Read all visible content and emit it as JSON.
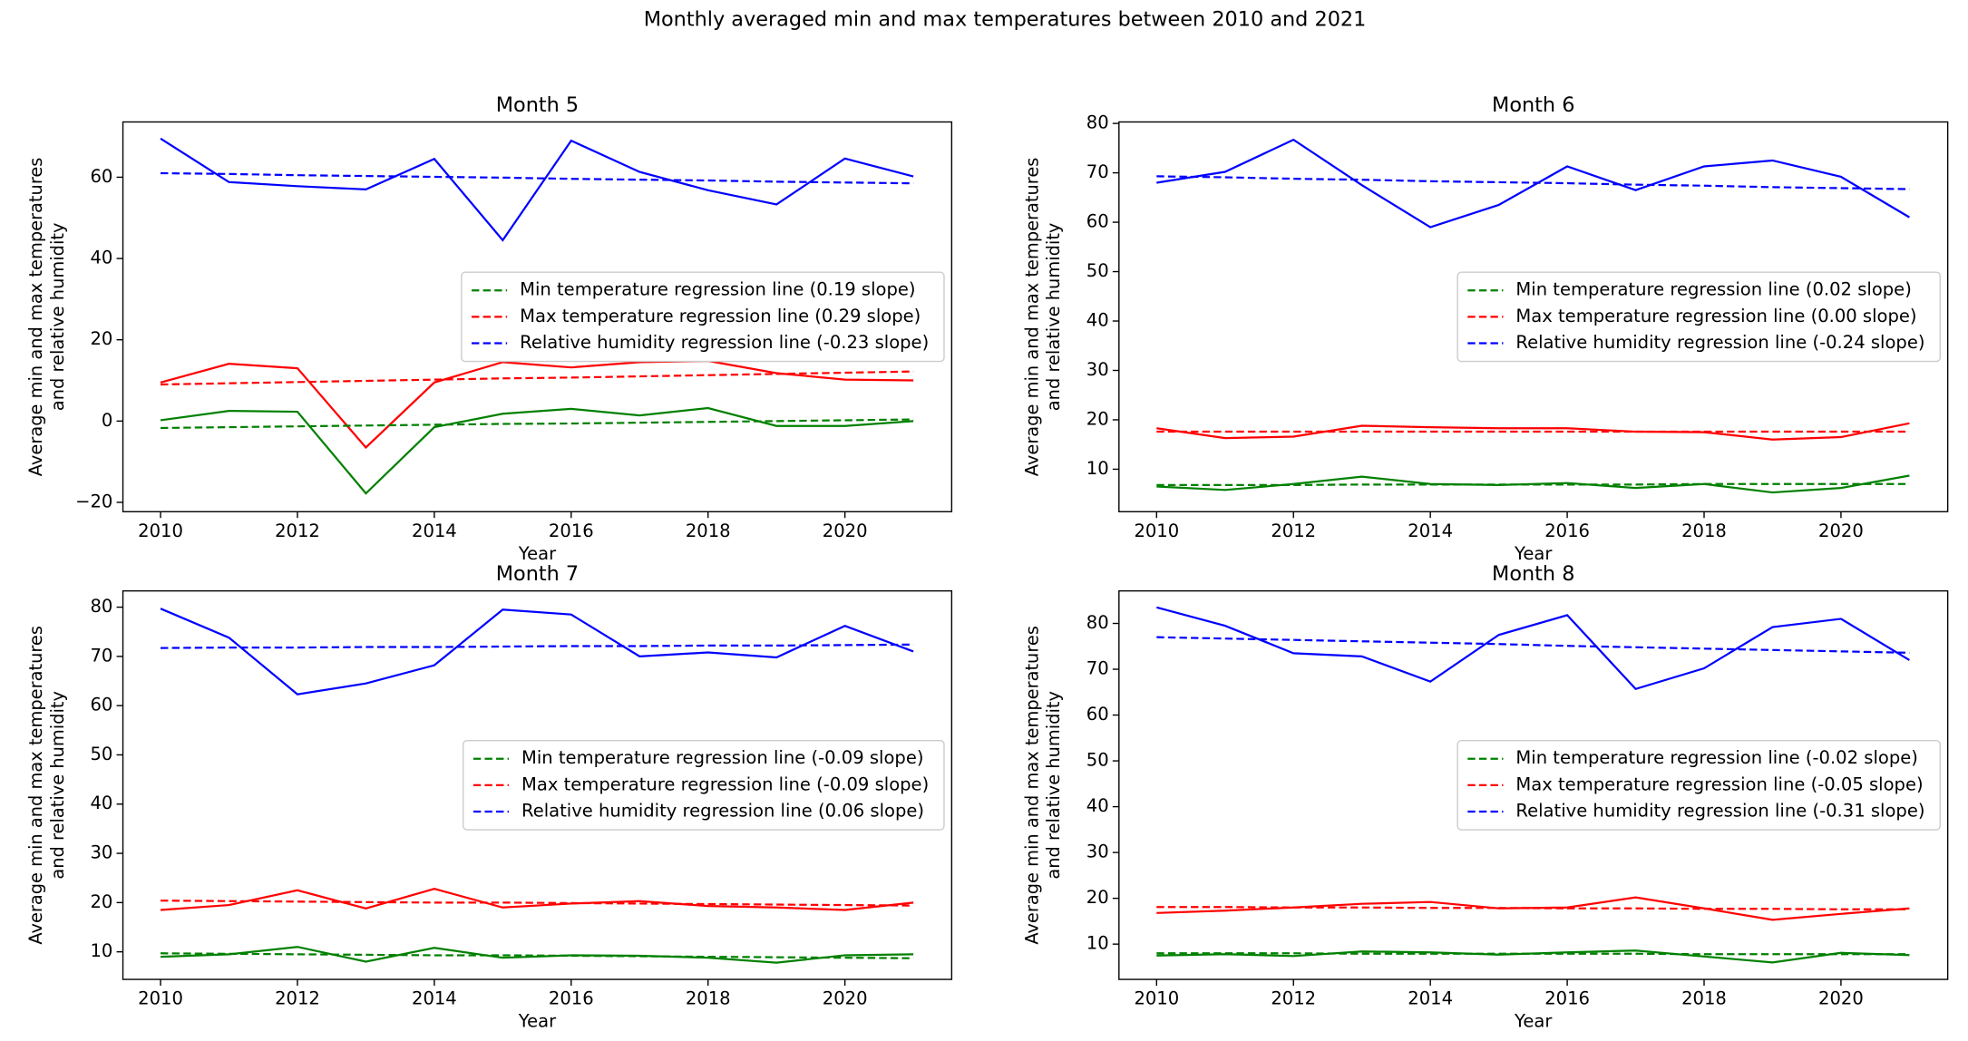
{
  "title": "Monthly averaged min and max temperatures between 2010 and 2021",
  "chart_data": [
    {
      "type": "line",
      "title": "Month 5",
      "xlabel": "Year",
      "ylabel": [
        "Average min and max temperatures",
        "and relative humidity"
      ],
      "x": [
        2010,
        2011,
        2012,
        2013,
        2014,
        2015,
        2016,
        2017,
        2018,
        2019,
        2020,
        2021
      ],
      "xlim": [
        2009.45,
        2021.56
      ],
      "xticks": [
        2010,
        2012,
        2014,
        2016,
        2018,
        2020
      ],
      "ylim": [
        -22.3,
        73.6
      ],
      "yticks": [
        {
          "value": -20,
          "label": "−20"
        },
        0,
        20,
        40,
        60
      ],
      "legend": "center right",
      "series": [
        {
          "color": "#008000",
          "linestyle": "solid",
          "values": [
            0.2,
            2.5,
            2.3,
            -17.8,
            -1.5,
            1.8,
            3.0,
            1.4,
            3.2,
            -1.2,
            -1.2,
            0
          ]
        },
        {
          "color": "#ff0000",
          "linestyle": "solid",
          "values": [
            9.5,
            14.1,
            13.0,
            -6.5,
            9.5,
            14.5,
            13.2,
            14.5,
            14.8,
            11.8,
            10.2,
            10.0
          ]
        },
        {
          "color": "#0000ff",
          "linestyle": "solid",
          "values": [
            69.5,
            58.8,
            57.8,
            57.0,
            64.5,
            44.5,
            69.0,
            61.3,
            56.8,
            53.3,
            64.6,
            60.2
          ]
        },
        {
          "name": "Min temperature regression line (0.19 slope)",
          "color": "#008000",
          "linestyle": "dashed",
          "values": [
            -1.7,
            -1.5,
            -1.3,
            -1.1,
            -0.9,
            -0.7,
            -0.6,
            -0.4,
            -0.2,
            0.0,
            0.2,
            0.4
          ]
        },
        {
          "name": "Max temperature regression line (0.29 slope)",
          "color": "#ff0000",
          "linestyle": "dashed",
          "values": [
            9.0,
            9.3,
            9.6,
            9.9,
            10.2,
            10.5,
            10.7,
            11.0,
            11.3,
            11.6,
            11.9,
            12.2
          ]
        },
        {
          "name": "Relative humidity regression line (-0.23 slope)",
          "color": "#0000ff",
          "linestyle": "dashed",
          "values": [
            61.0,
            60.8,
            60.5,
            60.3,
            60.1,
            59.9,
            59.6,
            59.4,
            59.2,
            58.9,
            58.7,
            58.5
          ]
        }
      ]
    },
    {
      "type": "line",
      "title": "Month 6",
      "xlabel": "Year",
      "ylabel": [
        "Average min and max temperatures",
        "and relative humidity"
      ],
      "x": [
        2010,
        2011,
        2012,
        2013,
        2014,
        2015,
        2016,
        2017,
        2018,
        2019,
        2020,
        2021
      ],
      "xlim": [
        2009.45,
        2021.56
      ],
      "xticks": [
        2010,
        2012,
        2014,
        2016,
        2018,
        2020
      ],
      "ylim": [
        1.4,
        80.3
      ],
      "yticks": [
        10,
        20,
        30,
        40,
        50,
        60,
        70,
        80
      ],
      "legend": "center right",
      "series": [
        {
          "color": "#008000",
          "linestyle": "solid",
          "values": [
            6.5,
            5.8,
            7.0,
            8.5,
            7.0,
            6.8,
            7.2,
            6.2,
            7.0,
            5.3,
            6.2,
            8.7
          ]
        },
        {
          "color": "#ff0000",
          "linestyle": "solid",
          "values": [
            18.3,
            16.3,
            16.6,
            18.8,
            18.5,
            18.3,
            18.3,
            17.6,
            17.5,
            16.0,
            16.5,
            19.3
          ]
        },
        {
          "color": "#0000ff",
          "linestyle": "solid",
          "values": [
            68.0,
            70.2,
            76.7,
            67.5,
            59.0,
            63.5,
            71.3,
            66.5,
            71.3,
            72.5,
            69.2,
            61.0
          ]
        },
        {
          "name": "Min temperature regression line (0.02 slope)",
          "color": "#008000",
          "linestyle": "dashed",
          "values": [
            6.8,
            6.8,
            6.8,
            6.9,
            6.9,
            6.9,
            6.9,
            6.9,
            7.0,
            7.0,
            7.0,
            7.0
          ]
        },
        {
          "name": "Max temperature regression line (0.00 slope)",
          "color": "#ff0000",
          "linestyle": "dashed",
          "values": [
            17.6,
            17.6,
            17.6,
            17.6,
            17.6,
            17.6,
            17.6,
            17.6,
            17.6,
            17.6,
            17.6,
            17.6
          ]
        },
        {
          "name": "Relative humidity regression line (-0.24 slope)",
          "color": "#0000ff",
          "linestyle": "dashed",
          "values": [
            69.3,
            69.1,
            68.8,
            68.6,
            68.3,
            68.1,
            67.9,
            67.6,
            67.4,
            67.1,
            66.9,
            66.7
          ]
        }
      ]
    },
    {
      "type": "line",
      "title": "Month 7",
      "xlabel": "Year",
      "ylabel": [
        "Average min and max temperatures",
        "and relative humidity"
      ],
      "x": [
        2010,
        2011,
        2012,
        2013,
        2014,
        2015,
        2016,
        2017,
        2018,
        2019,
        2020,
        2021
      ],
      "xlim": [
        2009.45,
        2021.56
      ],
      "xticks": [
        2010,
        2012,
        2014,
        2016,
        2018,
        2020
      ],
      "ylim": [
        4.4,
        83.3
      ],
      "yticks": [
        10,
        20,
        30,
        40,
        50,
        60,
        70,
        80
      ],
      "legend": "center right",
      "series": [
        {
          "color": "#008000",
          "linestyle": "solid",
          "values": [
            9.0,
            9.5,
            11.0,
            8.0,
            10.8,
            8.8,
            9.3,
            9.2,
            8.8,
            7.8,
            9.3,
            9.5
          ]
        },
        {
          "color": "#ff0000",
          "linestyle": "solid",
          "values": [
            18.5,
            19.5,
            22.5,
            18.8,
            22.8,
            19.0,
            19.8,
            20.3,
            19.3,
            19.0,
            18.5,
            20.0
          ]
        },
        {
          "color": "#0000ff",
          "linestyle": "solid",
          "values": [
            79.7,
            73.8,
            62.3,
            64.5,
            68.2,
            79.5,
            78.5,
            70.0,
            70.8,
            69.8,
            76.2,
            71.0
          ]
        },
        {
          "name": "Min temperature regression line (-0.09 slope)",
          "color": "#008000",
          "linestyle": "dashed",
          "values": [
            9.7,
            9.6,
            9.5,
            9.4,
            9.3,
            9.3,
            9.2,
            9.1,
            9.0,
            8.9,
            8.8,
            8.7
          ]
        },
        {
          "name": "Max temperature regression line (-0.09 slope)",
          "color": "#ff0000",
          "linestyle": "dashed",
          "values": [
            20.4,
            20.3,
            20.2,
            20.1,
            20.0,
            20.0,
            19.9,
            19.8,
            19.7,
            19.6,
            19.5,
            19.4
          ]
        },
        {
          "name": "Relative humidity regression line (0.06 slope)",
          "color": "#0000ff",
          "linestyle": "dashed",
          "values": [
            71.7,
            71.8,
            71.8,
            71.9,
            71.9,
            72.0,
            72.1,
            72.1,
            72.2,
            72.2,
            72.3,
            72.4
          ]
        }
      ]
    },
    {
      "type": "line",
      "title": "Month 8",
      "xlabel": "Year",
      "ylabel": [
        "Average min and max temperatures",
        "and relative humidity"
      ],
      "x": [
        2010,
        2011,
        2012,
        2013,
        2014,
        2015,
        2016,
        2017,
        2018,
        2019,
        2020,
        2021
      ],
      "xlim": [
        2009.45,
        2021.56
      ],
      "xticks": [
        2010,
        2012,
        2014,
        2016,
        2018,
        2020
      ],
      "ylim": [
        2.3,
        87.1
      ],
      "yticks": [
        10,
        20,
        30,
        40,
        50,
        60,
        70,
        80
      ],
      "legend": "center right",
      "series": [
        {
          "color": "#008000",
          "linestyle": "solid",
          "values": [
            7.5,
            7.8,
            7.4,
            8.4,
            8.2,
            7.7,
            8.2,
            8.6,
            7.3,
            6.0,
            8.1,
            7.6
          ]
        },
        {
          "color": "#ff0000",
          "linestyle": "solid",
          "values": [
            16.8,
            17.3,
            18.0,
            18.8,
            19.2,
            17.8,
            18.0,
            20.2,
            17.8,
            15.3,
            16.6,
            17.8
          ]
        },
        {
          "color": "#0000ff",
          "linestyle": "solid",
          "values": [
            83.5,
            79.5,
            73.5,
            72.8,
            67.3,
            77.5,
            81.8,
            65.7,
            70.2,
            79.2,
            81.0,
            72.0
          ]
        },
        {
          "name": "Min temperature regression line (-0.02 slope)",
          "color": "#008000",
          "linestyle": "dashed",
          "values": [
            8.0,
            8.0,
            8.0,
            7.9,
            7.9,
            7.9,
            7.9,
            7.9,
            7.8,
            7.8,
            7.8,
            7.8
          ]
        },
        {
          "name": "Max temperature regression line (-0.05 slope)",
          "color": "#ff0000",
          "linestyle": "dashed",
          "values": [
            18.1,
            18.1,
            18.0,
            18.0,
            17.9,
            17.9,
            17.8,
            17.8,
            17.7,
            17.7,
            17.6,
            17.6
          ]
        },
        {
          "name": "Relative humidity regression line (-0.31 slope)",
          "color": "#0000ff",
          "linestyle": "dashed",
          "values": [
            77.0,
            76.7,
            76.4,
            76.1,
            75.8,
            75.5,
            75.1,
            74.8,
            74.5,
            74.2,
            73.9,
            73.6
          ]
        }
      ]
    }
  ]
}
